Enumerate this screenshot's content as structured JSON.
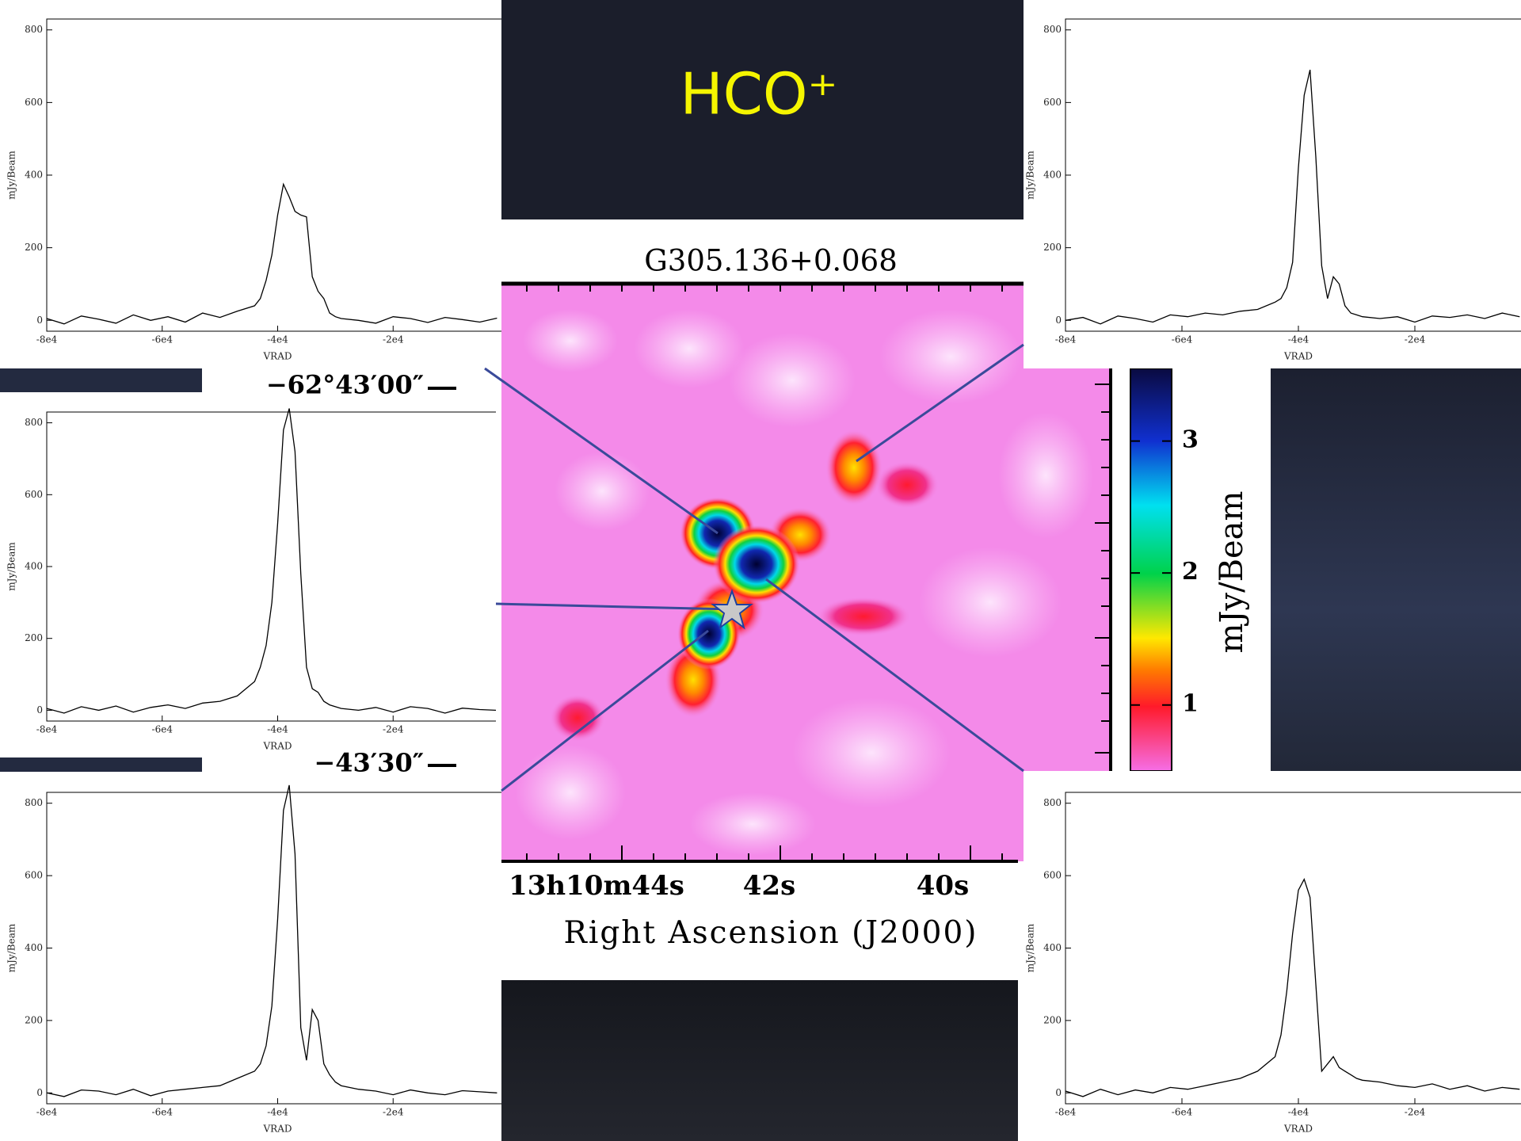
{
  "slide_title": "HCO⁺",
  "chart_data": [
    {
      "type": "heatmap",
      "title": "G305.136+0.068",
      "xlabel": "Right Ascension (J2000)",
      "xticks": [
        "13h10m44s",
        "42s",
        "40s"
      ],
      "yticks": [
        "−62°43′00″",
        "−43′30″"
      ],
      "colorbar_label": "mJy/Beam",
      "clim": [
        0.5,
        3.55
      ],
      "cticks": [
        1,
        2,
        3
      ]
    },
    {
      "type": "line",
      "xlabel": "VRAD",
      "ylabel": "mJy/Beam",
      "xlim": [
        -80000,
        0
      ],
      "ylim": [
        -30,
        830
      ],
      "xticks": [
        {
          "value": -80000,
          "label": "-8e4"
        },
        {
          "value": -60000,
          "label": "-6e4"
        },
        {
          "value": -40000,
          "label": "-4e4"
        },
        {
          "value": -20000,
          "label": "-2e4"
        }
      ],
      "yticks": [
        0,
        200,
        400,
        600,
        800
      ],
      "x": [
        -80000,
        -77000,
        -74000,
        -71000,
        -68000,
        -65000,
        -62000,
        -59000,
        -56000,
        -53000,
        -50000,
        -47000,
        -44000,
        -43000,
        -42000,
        -41000,
        -40000,
        -39000,
        -38000,
        -37000,
        -36000,
        -35000,
        -34000,
        -33000,
        -32000,
        -31000,
        -30000,
        -29000,
        -26000,
        -23000,
        -20000,
        -17000,
        -14000,
        -11000,
        -8000,
        -5000,
        -2000
      ],
      "color": "#000000",
      "values": [
        5,
        -10,
        12,
        3,
        -8,
        15,
        0,
        10,
        -5,
        20,
        8,
        25,
        40,
        60,
        110,
        180,
        290,
        375,
        340,
        300,
        290,
        285,
        120,
        80,
        60,
        20,
        10,
        5,
        0,
        -8,
        10,
        5,
        -6,
        8,
        2,
        -5,
        6
      ]
    },
    {
      "type": "line",
      "xlabel": "VRAD",
      "ylabel": "mJy/Beam",
      "xlim": [
        -80000,
        0
      ],
      "ylim": [
        -30,
        830
      ],
      "xticks": [
        {
          "value": -80000,
          "label": "-8e4"
        },
        {
          "value": -60000,
          "label": "-6e4"
        },
        {
          "value": -40000,
          "label": "-4e4"
        },
        {
          "value": -20000,
          "label": "-2e4"
        }
      ],
      "yticks": [
        0,
        200,
        400,
        600,
        800
      ],
      "x": [
        -80000,
        -77000,
        -74000,
        -71000,
        -68000,
        -65000,
        -62000,
        -59000,
        -56000,
        -53000,
        -50000,
        -47000,
        -44000,
        -43000,
        -42000,
        -41000,
        -40000,
        -39000,
        -38000,
        -37000,
        -36000,
        -35000,
        -34000,
        -33000,
        -32000,
        -31000,
        -30000,
        -29000,
        -26000,
        -23000,
        -20000,
        -17000,
        -14000,
        -11000,
        -8000,
        -5000,
        -2000
      ],
      "color": "#000000",
      "values": [
        0,
        8,
        -10,
        12,
        5,
        -5,
        15,
        10,
        20,
        15,
        25,
        30,
        50,
        60,
        90,
        160,
        420,
        620,
        690,
        450,
        150,
        60,
        120,
        100,
        40,
        20,
        15,
        10,
        5,
        10,
        -5,
        12,
        8,
        15,
        5,
        20,
        10
      ]
    },
    {
      "type": "line",
      "xlabel": "VRAD",
      "ylabel": "mJy/Beam",
      "xlim": [
        -80000,
        0
      ],
      "ylim": [
        -30,
        830
      ],
      "xticks": [
        {
          "value": -80000,
          "label": "-8e4"
        },
        {
          "value": -60000,
          "label": "-6e4"
        },
        {
          "value": -40000,
          "label": "-4e4"
        },
        {
          "value": -20000,
          "label": "-2e4"
        }
      ],
      "yticks": [
        0,
        200,
        400,
        600,
        800
      ],
      "x": [
        -80000,
        -77000,
        -74000,
        -71000,
        -68000,
        -65000,
        -62000,
        -59000,
        -56000,
        -53000,
        -50000,
        -47000,
        -44000,
        -43000,
        -42000,
        -41000,
        -40000,
        -39000,
        -38000,
        -37000,
        -36000,
        -35000,
        -34000,
        -33000,
        -32000,
        -31000,
        -30000,
        -29000,
        -26000,
        -23000,
        -20000,
        -17000,
        -14000,
        -11000,
        -8000,
        -5000,
        -2000
      ],
      "color": "#000000",
      "values": [
        5,
        -8,
        10,
        0,
        12,
        -5,
        8,
        15,
        5,
        20,
        25,
        40,
        80,
        120,
        180,
        300,
        520,
        780,
        840,
        720,
        380,
        120,
        60,
        50,
        25,
        15,
        10,
        5,
        0,
        8,
        -5,
        10,
        5,
        -8,
        6,
        2,
        0
      ]
    },
    {
      "type": "line",
      "xlabel": "VRAD",
      "ylabel": "mJy/Beam",
      "xlim": [
        -80000,
        0
      ],
      "ylim": [
        -30,
        830
      ],
      "xticks": [
        {
          "value": -80000,
          "label": "-8e4"
        },
        {
          "value": -60000,
          "label": "-6e4"
        },
        {
          "value": -40000,
          "label": "-4e4"
        },
        {
          "value": -20000,
          "label": "-2e4"
        }
      ],
      "yticks": [
        0,
        200,
        400,
        600,
        800
      ],
      "x": [
        -80000,
        -77000,
        -74000,
        -71000,
        -68000,
        -65000,
        -62000,
        -59000,
        -56000,
        -53000,
        -50000,
        -47000,
        -44000,
        -43000,
        -42000,
        -41000,
        -40000,
        -39000,
        -38000,
        -37000,
        -36000,
        -35000,
        -34000,
        -33000,
        -32000,
        -31000,
        -30000,
        -29000,
        -26000,
        -23000,
        -20000,
        -17000,
        -14000,
        -11000,
        -8000,
        -5000,
        -2000
      ],
      "color": "#000000",
      "values": [
        0,
        -10,
        8,
        5,
        -5,
        10,
        -8,
        5,
        10,
        15,
        20,
        40,
        60,
        80,
        130,
        240,
        480,
        780,
        850,
        660,
        180,
        90,
        230,
        200,
        80,
        50,
        30,
        20,
        10,
        5,
        -5,
        8,
        0,
        -5,
        6,
        3,
        0
      ]
    },
    {
      "type": "line",
      "xlabel": "VRAD",
      "ylabel": "mJy/Beam",
      "xlim": [
        -80000,
        0
      ],
      "ylim": [
        -30,
        830
      ],
      "xticks": [
        {
          "value": -80000,
          "label": "-8e4"
        },
        {
          "value": -60000,
          "label": "-6e4"
        },
        {
          "value": -40000,
          "label": "-4e4"
        },
        {
          "value": -20000,
          "label": "-2e4"
        }
      ],
      "yticks": [
        0,
        200,
        400,
        600,
        800
      ],
      "x": [
        -80000,
        -77000,
        -74000,
        -71000,
        -68000,
        -65000,
        -62000,
        -59000,
        -56000,
        -53000,
        -50000,
        -47000,
        -44000,
        -43000,
        -42000,
        -41000,
        -40000,
        -39000,
        -38000,
        -37000,
        -36000,
        -35000,
        -34000,
        -33000,
        -32000,
        -31000,
        -30000,
        -29000,
        -26000,
        -23000,
        -20000,
        -17000,
        -14000,
        -11000,
        -8000,
        -5000,
        -2000
      ],
      "color": "#000000",
      "values": [
        5,
        -10,
        10,
        -5,
        8,
        0,
        15,
        10,
        20,
        30,
        40,
        60,
        100,
        160,
        280,
        440,
        560,
        590,
        540,
        300,
        60,
        80,
        100,
        70,
        60,
        50,
        40,
        35,
        30,
        20,
        15,
        25,
        10,
        20,
        5,
        15,
        10
      ]
    }
  ]
}
